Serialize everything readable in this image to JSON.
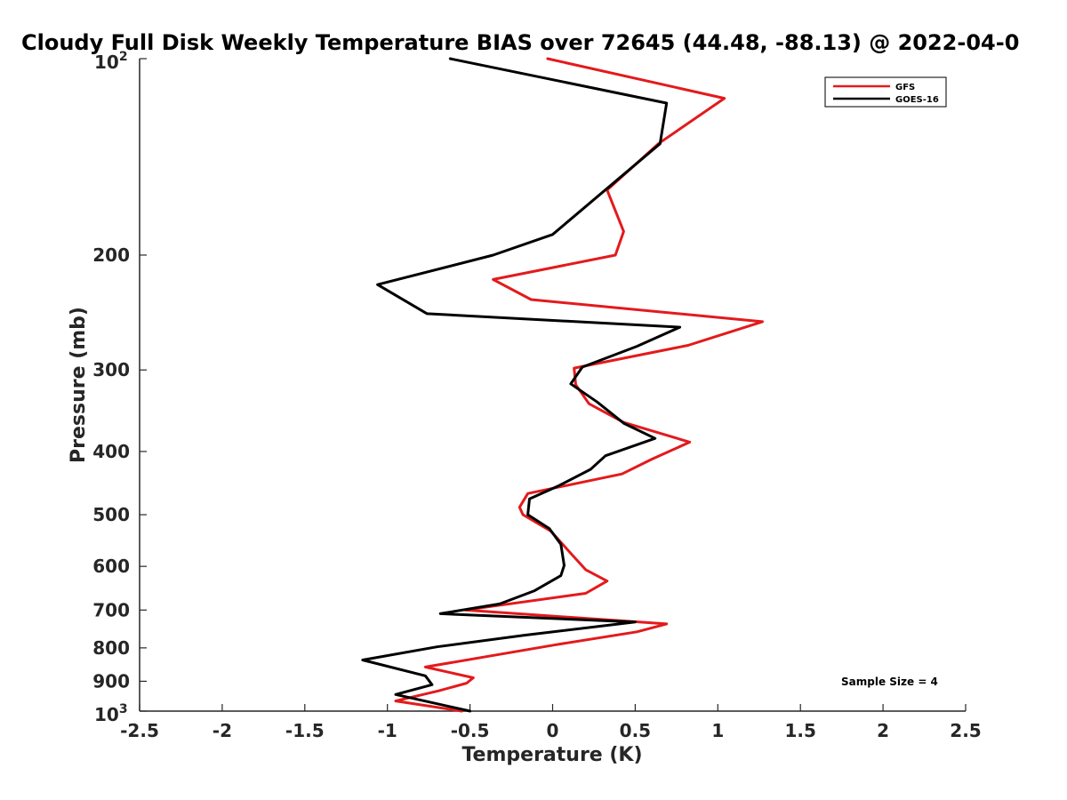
{
  "chart_data": {
    "type": "line",
    "title": "Cloudy Full Disk Weekly Temperature BIAS over 72645 (44.48, -88.13) @ 2022-04-0",
    "xlabel": "Temperature (K)",
    "ylabel": "Pressure (mb)",
    "xlim": [
      -2.5,
      2.5
    ],
    "ylim": [
      1000,
      100
    ],
    "yscale": "log",
    "xticks": [
      -2.5,
      -2,
      -1.5,
      -1,
      -0.5,
      0,
      0.5,
      1,
      1.5,
      2,
      2.5
    ],
    "xtick_labels": [
      "-2.5",
      "-2",
      "-1.5",
      "-1",
      "-0.5",
      "0",
      "0.5",
      "1",
      "1.5",
      "2",
      "2.5"
    ],
    "yticks": [
      {
        "value": 100,
        "label": "10",
        "exp": "2"
      },
      {
        "value": 200,
        "label": "200"
      },
      {
        "value": 300,
        "label": "300"
      },
      {
        "value": 400,
        "label": "400"
      },
      {
        "value": 500,
        "label": "500"
      },
      {
        "value": 600,
        "label": "600"
      },
      {
        "value": 700,
        "label": "700"
      },
      {
        "value": 800,
        "label": "800"
      },
      {
        "value": 900,
        "label": "900"
      },
      {
        "value": 1000,
        "label": "10",
        "exp": "3"
      }
    ],
    "grid": false,
    "legend_position": "top-right",
    "annotation": "Sample Size = 4",
    "series": [
      {
        "name": "GFS",
        "color": "#e31a1c",
        "points": [
          [
            -0.03,
            100
          ],
          [
            1.04,
            115
          ],
          [
            0.64,
            135
          ],
          [
            0.33,
            159
          ],
          [
            0.43,
            184
          ],
          [
            0.38,
            200
          ],
          [
            -0.36,
            218
          ],
          [
            -0.13,
            234
          ],
          [
            1.27,
            253
          ],
          [
            0.82,
            275
          ],
          [
            0.13,
            298
          ],
          [
            0.14,
            316
          ],
          [
            0.22,
            338
          ],
          [
            0.43,
            361
          ],
          [
            0.83,
            387
          ],
          [
            0.6,
            411
          ],
          [
            0.42,
            433
          ],
          [
            -0.15,
            464
          ],
          [
            -0.2,
            487
          ],
          [
            -0.18,
            500
          ],
          [
            -0.01,
            530
          ],
          [
            0.11,
            573
          ],
          [
            0.2,
            607
          ],
          [
            0.33,
            632
          ],
          [
            0.2,
            660
          ],
          [
            -0.53,
            700
          ],
          [
            0.69,
            735
          ],
          [
            0.51,
            756
          ],
          [
            0.02,
            791
          ],
          [
            -0.77,
            856
          ],
          [
            -0.48,
            889
          ],
          [
            -0.52,
            906
          ],
          [
            -0.69,
            931
          ],
          [
            -0.95,
            965
          ],
          [
            -0.55,
            1000
          ]
        ]
      },
      {
        "name": "GOES-16",
        "color": "#000000",
        "points": [
          [
            -0.62,
            100
          ],
          [
            0.69,
            117
          ],
          [
            0.65,
            135
          ],
          [
            0.0,
            186
          ],
          [
            -0.36,
            200
          ],
          [
            -1.06,
            222
          ],
          [
            -0.76,
            246
          ],
          [
            0.77,
            258
          ],
          [
            0.51,
            276
          ],
          [
            0.18,
            297
          ],
          [
            0.11,
            315
          ],
          [
            0.27,
            336
          ],
          [
            0.43,
            362
          ],
          [
            0.62,
            382
          ],
          [
            0.32,
            406
          ],
          [
            0.23,
            426
          ],
          [
            0.04,
            451
          ],
          [
            -0.14,
            473
          ],
          [
            -0.15,
            500
          ],
          [
            -0.02,
            525
          ],
          [
            0.05,
            555
          ],
          [
            0.07,
            598
          ],
          [
            0.05,
            620
          ],
          [
            -0.11,
            654
          ],
          [
            -0.32,
            685
          ],
          [
            -0.68,
            709
          ],
          [
            0.5,
            730
          ],
          [
            -0.17,
            765
          ],
          [
            -0.7,
            797
          ],
          [
            -1.15,
            835
          ],
          [
            -0.77,
            883
          ],
          [
            -0.73,
            911
          ],
          [
            -0.95,
            943
          ],
          [
            -0.5,
            1000
          ]
        ]
      }
    ]
  }
}
